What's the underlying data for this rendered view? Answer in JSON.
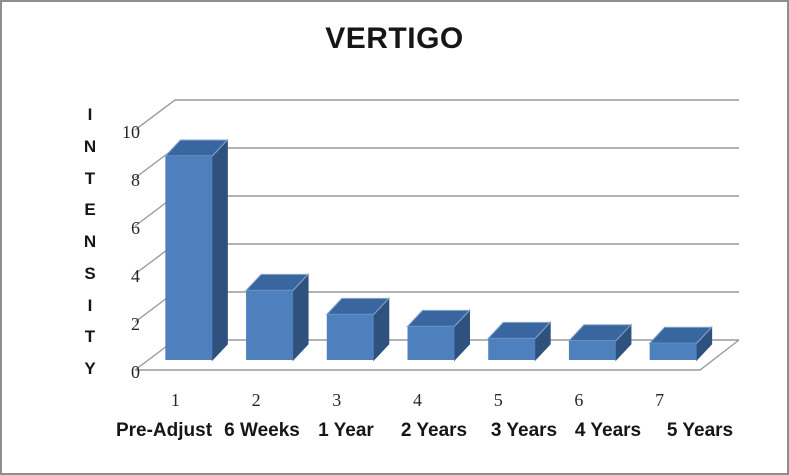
{
  "window": {
    "background": "#ffffff",
    "border_color": "#8e8e8e"
  },
  "chart_data": {
    "type": "bar",
    "style": "3d-column",
    "title": "VERTIGO",
    "ylabel": "INTENSITY",
    "xlabel": "",
    "categories": [
      "1",
      "2",
      "3",
      "4",
      "5",
      "6",
      "7"
    ],
    "category_sublabels": [
      "Pre-Adjust",
      "6 Weeks",
      "1 Year",
      "2 Years",
      "3 Years",
      "4 Years",
      "5 Years"
    ],
    "values": [
      8.5,
      2.9,
      1.9,
      1.4,
      0.9,
      0.8,
      0.7
    ],
    "y_ticks": [
      0,
      2,
      4,
      6,
      8,
      10
    ],
    "ylim": [
      0,
      10
    ],
    "grid": true,
    "legend": "none",
    "colors": {
      "bar_front": "#4d80bd",
      "bar_top": "#3a66a0",
      "bar_side": "#2e527d",
      "bar_edge_highlight": "#8aa9d2",
      "gridline": "#9a9a9a",
      "title_text": "#161616",
      "axis_text": "#262626"
    }
  }
}
